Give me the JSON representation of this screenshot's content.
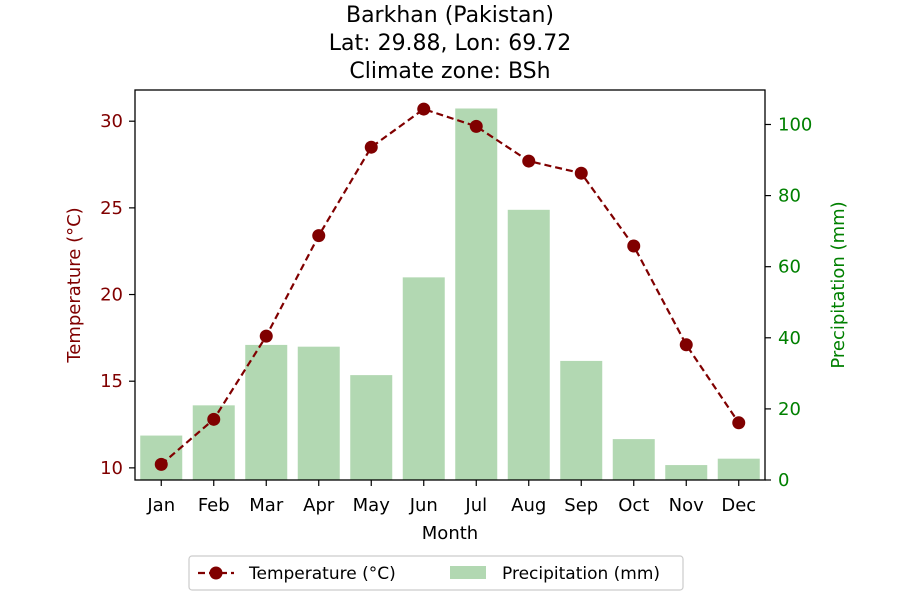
{
  "chart_data": {
    "type": "bar+line",
    "title_lines": [
      "Barkhan (Pakistan)",
      "Lat: 29.88, Lon: 69.72",
      "Climate zone: BSh"
    ],
    "xlabel": "Month",
    "categories": [
      "Jan",
      "Feb",
      "Mar",
      "Apr",
      "May",
      "Jun",
      "Jul",
      "Aug",
      "Sep",
      "Oct",
      "Nov",
      "Dec"
    ],
    "temperature": {
      "name": "Temperature (°C)",
      "axis_label": "Temperature (°C)",
      "values": [
        10.2,
        12.8,
        17.6,
        23.4,
        28.5,
        30.7,
        29.7,
        27.7,
        27.0,
        22.8,
        17.1,
        12.6
      ],
      "ylim": [
        9.3,
        31.8
      ],
      "ticks": [
        10,
        15,
        20,
        25,
        30
      ],
      "color": "#800000"
    },
    "precipitation": {
      "name": "Precipitation (mm)",
      "axis_label": "Precipitation (mm)",
      "values": [
        12.5,
        21.0,
        38.0,
        37.5,
        29.5,
        57.0,
        104.5,
        76.0,
        33.5,
        11.5,
        4.2,
        6.0
      ],
      "ylim": [
        0,
        109.7
      ],
      "ticks": [
        0,
        20,
        40,
        60,
        80,
        100
      ],
      "color": "#b2d8b2",
      "axis_color": "#008000"
    },
    "legend_position": "bottom-center",
    "grid": false
  }
}
